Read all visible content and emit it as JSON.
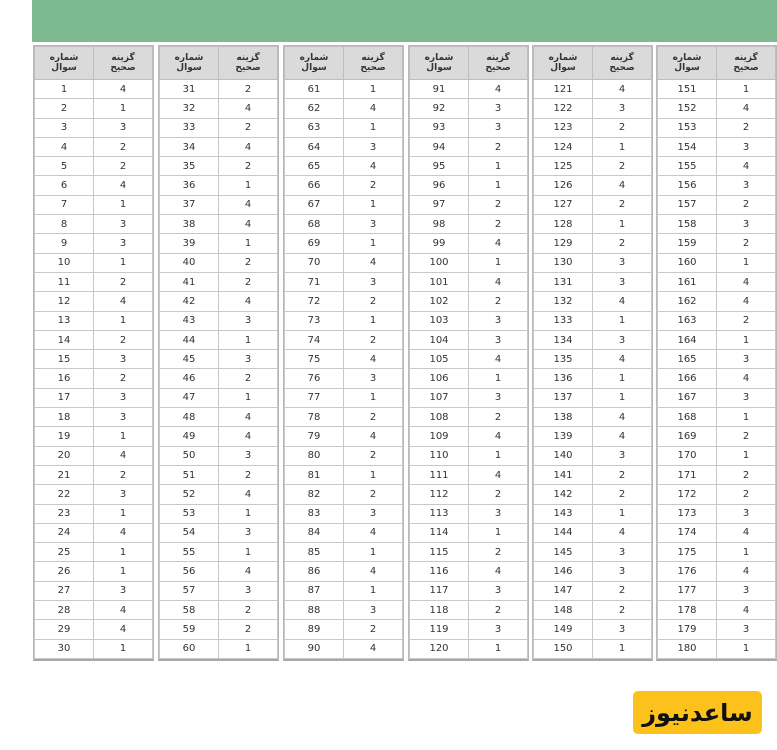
{
  "header": {
    "col_question": [
      "شماره",
      "سوال"
    ],
    "col_answer": [
      "گزینه",
      "صحیح"
    ]
  },
  "logo_text": "ساعدنیوز",
  "colors": {
    "banner": "#7dba91",
    "header_bg": "#dadada",
    "logo_bg": "#fcc21b"
  },
  "tables": [
    {
      "start": 1,
      "answers": [
        4,
        1,
        3,
        2,
        2,
        4,
        1,
        3,
        3,
        1,
        2,
        4,
        1,
        2,
        3,
        2,
        3,
        3,
        1,
        4,
        2,
        3,
        1,
        4,
        1,
        1,
        3,
        4,
        4,
        1
      ]
    },
    {
      "start": 31,
      "answers": [
        2,
        4,
        2,
        4,
        2,
        1,
        4,
        4,
        1,
        2,
        2,
        4,
        3,
        1,
        3,
        2,
        1,
        4,
        4,
        3,
        2,
        4,
        1,
        3,
        1,
        4,
        3,
        2,
        2,
        1
      ]
    },
    {
      "start": 61,
      "answers": [
        1,
        4,
        1,
        3,
        4,
        2,
        1,
        3,
        1,
        4,
        3,
        2,
        1,
        2,
        4,
        3,
        1,
        2,
        4,
        2,
        1,
        2,
        3,
        4,
        1,
        4,
        1,
        3,
        2,
        4
      ]
    },
    {
      "start": 91,
      "answers": [
        4,
        3,
        3,
        2,
        1,
        1,
        2,
        2,
        4,
        1,
        4,
        2,
        3,
        3,
        4,
        1,
        3,
        2,
        4,
        1,
        4,
        2,
        3,
        1,
        2,
        4,
        3,
        2,
        3,
        1
      ]
    },
    {
      "start": 121,
      "answers": [
        4,
        3,
        2,
        1,
        2,
        4,
        2,
        1,
        2,
        3,
        3,
        4,
        1,
        3,
        4,
        1,
        1,
        4,
        4,
        3,
        2,
        2,
        1,
        4,
        3,
        3,
        2,
        2,
        3,
        1
      ]
    },
    {
      "start": 151,
      "answers": [
        1,
        4,
        2,
        3,
        4,
        3,
        2,
        3,
        2,
        1,
        4,
        4,
        2,
        1,
        3,
        4,
        3,
        1,
        2,
        1,
        2,
        2,
        3,
        4,
        1,
        4,
        3,
        4,
        3,
        1
      ]
    }
  ]
}
